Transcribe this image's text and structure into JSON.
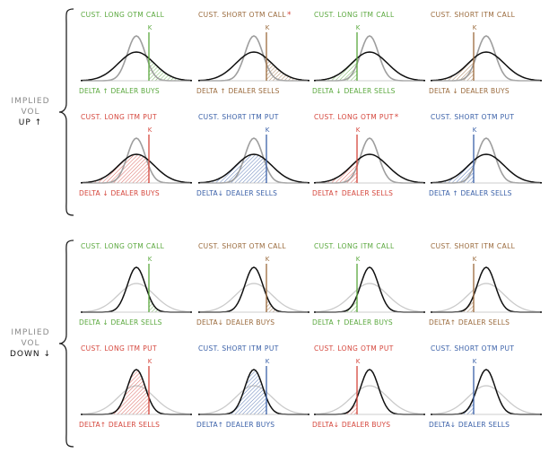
{
  "colors": {
    "green": "#5aa83d",
    "brown": "#9a6a3c",
    "red": "#d5463c",
    "blue": "#3a60a8",
    "narrow_curve": "#9e9e9e",
    "wide_curve": "#111111"
  },
  "sections": [
    {
      "label_line1": "IMPLIED",
      "label_line2": "VOL",
      "direction": "UP ↑",
      "panels": [
        {
          "title": "CUST. LONG OTM CALL",
          "star": "",
          "color": "green",
          "strike": "otm_call",
          "caption": "DELTA ↑ DEALER BUYS"
        },
        {
          "title": "CUST. SHORT OTM CALL",
          "star": "*",
          "color": "brown",
          "strike": "otm_call",
          "caption": "DELTA ↑ DEALER SELLS"
        },
        {
          "title": "CUST. LONG ITM CALL",
          "star": "",
          "color": "green",
          "strike": "itm_call",
          "caption": "DELTA ↓ DEALER SELLS"
        },
        {
          "title": "CUST. SHORT ITM CALL",
          "star": "",
          "color": "brown",
          "strike": "itm_call",
          "caption": "DELTA ↓ DEALER BUYS"
        },
        {
          "title": "CUST. LONG ITM PUT",
          "star": "",
          "color": "red",
          "strike": "itm_put",
          "caption": "DELTA ↓ DEALER BUYS"
        },
        {
          "title": "CUST. SHORT ITM PUT",
          "star": "",
          "color": "blue",
          "strike": "itm_put",
          "caption": "DELTA↓ DEALER SELLS"
        },
        {
          "title": "CUST. LONG OTM PUT",
          "star": "*",
          "color": "red",
          "strike": "otm_put",
          "caption": "DELTA↑ DEALER SELLS"
        },
        {
          "title": "CUST. SHORT OTM PUT",
          "star": "",
          "color": "blue",
          "strike": "otm_put",
          "caption": "DELTA ↑ DEALER SELLS"
        }
      ]
    },
    {
      "label_line1": "IMPLIED",
      "label_line2": "VOL",
      "direction": "DOWN ↓",
      "panels": [
        {
          "title": "CUST. LONG OTM CALL",
          "star": "",
          "color": "green",
          "strike": "otm_call",
          "caption": "DELTA ↓ DEALER SELLS"
        },
        {
          "title": "CUST. SHORT OTM CALL",
          "star": "",
          "color": "brown",
          "strike": "otm_call",
          "caption": "DELTA↓ DEALER BUYS"
        },
        {
          "title": "CUST. LONG ITM CALL",
          "star": "",
          "color": "green",
          "strike": "itm_call",
          "caption": "DELTA ↑ DEALER BUYS"
        },
        {
          "title": "CUST. SHORT ITM CALL",
          "star": "",
          "color": "brown",
          "strike": "itm_call",
          "caption": "DELTA↑ DEALER SELLS"
        },
        {
          "title": "CUST. LONG ITM PUT",
          "star": "",
          "color": "red",
          "strike": "itm_put",
          "caption": "DELTA↑ DEALER SELLS"
        },
        {
          "title": "CUST. SHORT ITM PUT",
          "star": "",
          "color": "blue",
          "strike": "itm_put",
          "caption": "DELTA↑ DEALER BUYS"
        },
        {
          "title": "CUST. LONG OTM PUT",
          "star": "",
          "color": "red",
          "strike": "otm_put",
          "caption": "DELTA↓ DEALER BUYS"
        },
        {
          "title": "CUST. SHORT OTM PUT",
          "star": "",
          "color": "blue",
          "strike": "otm_put",
          "caption": "DELTA↓ DEALER SELLS"
        }
      ]
    }
  ],
  "strike_label": "K"
}
